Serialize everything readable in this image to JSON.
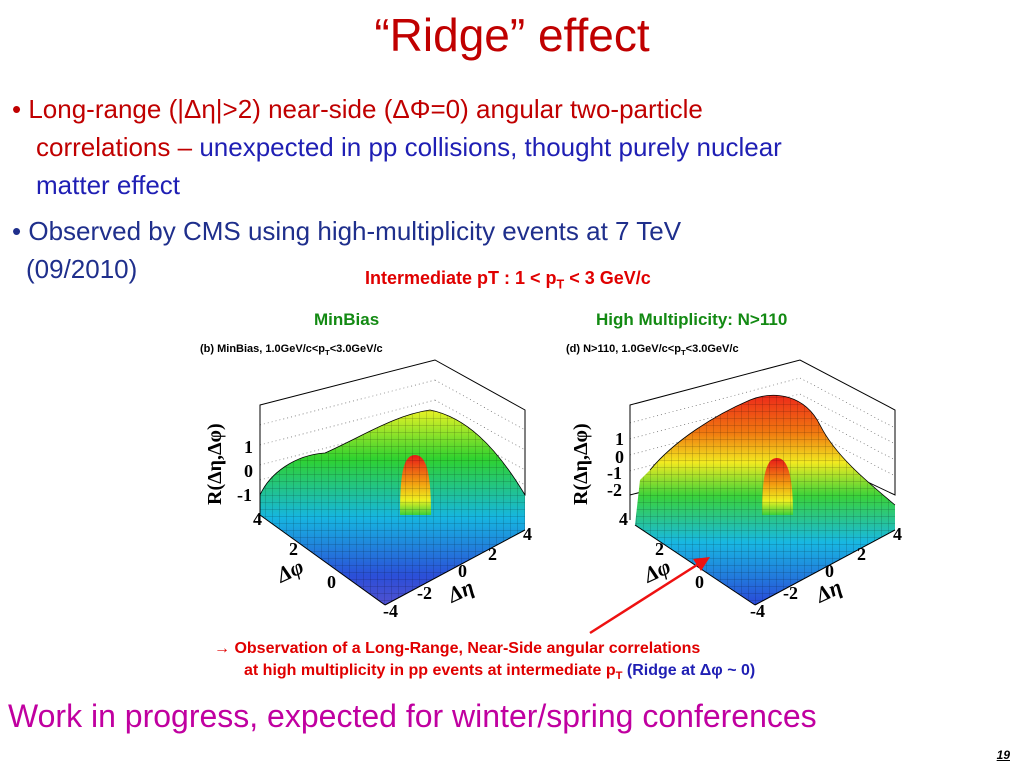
{
  "slide": {
    "title": "“Ridge” effect",
    "bullet1": {
      "marker": "•",
      "red_text": "Long-range (|Δη|>2) near-side (ΔΦ=0) angular two-particle",
      "red_text2": "correlations",
      "dash": " – ",
      "blue_text": "unexpected in pp collisions, thought purely nuclear",
      "blue_text2": "matter effect"
    },
    "bullet2": {
      "marker": "•",
      "text": "Observed by CMS using high-multiplicity events at 7 TeV",
      "text2": "(09/2010)"
    },
    "figure": {
      "title_prefix": "Intermediate pT : 1 < p",
      "title_sub": "T",
      "title_suffix": " < 3  GeV/c",
      "left_label": "MinBias",
      "right_label": "High Multiplicity: N>110",
      "left_caption_prefix": "(b) MinBias, 1.0GeV/c<p",
      "left_caption_sub": "T",
      "left_caption_suffix": "<3.0GeV/c",
      "right_caption_prefix": "(d) N>110, 1.0GeV/c<p",
      "right_caption_sub": "T",
      "right_caption_suffix": "<3.0GeV/c",
      "z_axis_label": "R(Δη,Δφ)",
      "phi_axis_label": "Δφ",
      "eta_axis_label": "Δη",
      "left_z_ticks": [
        "1",
        "0",
        "-1"
      ],
      "right_z_ticks": [
        "1",
        "0",
        "-1",
        "-2"
      ],
      "phi_ticks": [
        "4",
        "2",
        "0"
      ],
      "eta_ticks": [
        "4",
        "2",
        "0",
        "-2",
        "-4"
      ]
    },
    "observation": {
      "arrow": "→",
      "line1": "Observation of a Long-Range, Near-Side angular correlations",
      "line2_prefix": "at high multiplicity in pp events at intermediate p",
      "line2_sub": "T",
      "ridge": "(Ridge at Δφ ~ 0)"
    },
    "footer": "Work in progress, expected for winter/spring conferences",
    "page_number": "19"
  },
  "colors": {
    "title": "#c00000",
    "bullet_red": "#c00000",
    "bullet_blue": "#1f1fb4",
    "figure_title": "#e00000",
    "panel_label": "#138a13",
    "footer": "#c000a0",
    "arrow": "#ee1111"
  }
}
